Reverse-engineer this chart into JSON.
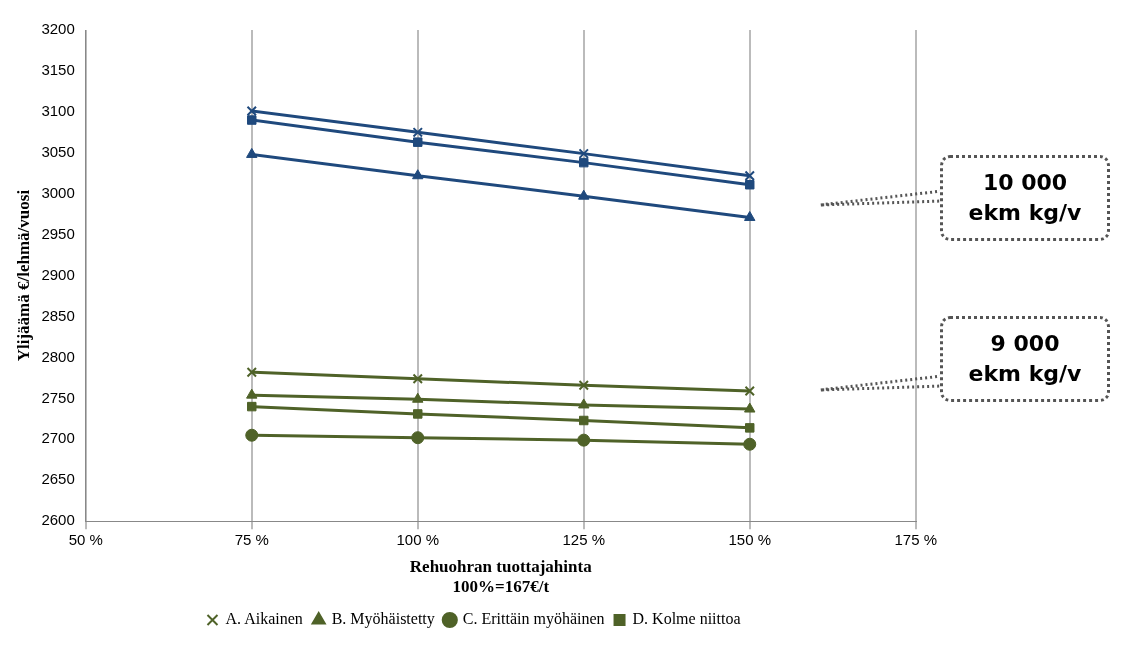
{
  "chart_data": {
    "type": "line",
    "ylabel": "Ylijäämä €/lehmä/vuosi",
    "xlabel": "Rehuohran tuottajahinta\n100%=167€/t",
    "x": [
      75,
      100,
      125,
      150
    ],
    "xlim": [
      50,
      175
    ],
    "xticks": [
      {
        "value": 50,
        "label": "50 %"
      },
      {
        "value": 75,
        "label": "75 %"
      },
      {
        "value": 100,
        "label": "100 %"
      },
      {
        "value": 125,
        "label": "125 %"
      },
      {
        "value": 150,
        "label": "150 %"
      },
      {
        "value": 175,
        "label": "175 %"
      }
    ],
    "ylim": [
      2600,
      3200
    ],
    "yticks": [
      2600,
      2650,
      2700,
      2750,
      2800,
      2850,
      2900,
      2950,
      3000,
      3050,
      3100,
      3150,
      3200
    ],
    "grid": "x",
    "legend": "bottom",
    "line_style": "solid",
    "series": [
      {
        "name": "A. Aikainen",
        "color": "#4f6228",
        "marker": "cross",
        "values": [
          2782,
          2774,
          2766,
          2759
        ]
      },
      {
        "name": "B. Myöhäistetty",
        "color": "#4f6228",
        "marker": "triangle",
        "values": [
          2754,
          2749,
          2742,
          2737
        ]
      },
      {
        "name": "C. Erittäin myöhäinen",
        "color": "#4f6228",
        "marker": "circle",
        "values": [
          2705,
          2702,
          2699,
          2694
        ]
      },
      {
        "name": "D. Kolme niittoa",
        "color": "#4f6228",
        "marker": "square",
        "values": [
          2740,
          2731,
          2723,
          2714
        ]
      },
      {
        "color": "#1f497d",
        "marker": "cross",
        "values": [
          3101,
          3075,
          3049,
          3022
        ]
      },
      {
        "color": "#1f497d",
        "marker": "triangle",
        "values": [
          3048,
          3022,
          2997,
          2971
        ]
      },
      {
        "color": "#1f497d",
        "marker": "square",
        "values": [
          3090,
          3063,
          3038,
          3011
        ]
      }
    ],
    "annotations": [
      "10 000\nekm kg/v",
      "9 000\nekm kg/v"
    ]
  }
}
